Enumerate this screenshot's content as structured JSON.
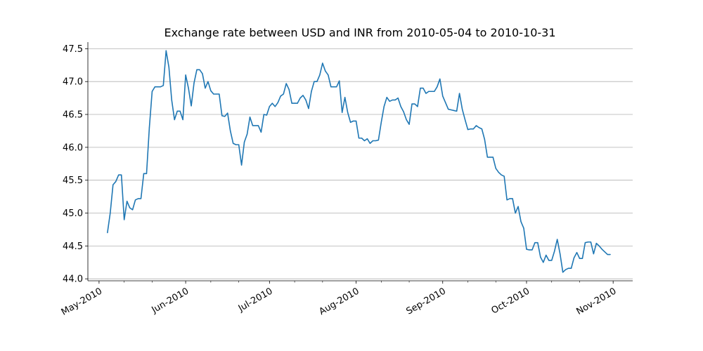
{
  "chart_data": {
    "type": "line",
    "title": "Exchange rate between USD and INR from 2010-05-04 to 2010-10-31",
    "xlabel": "",
    "ylabel": "",
    "x_start": "2010-05-04",
    "x_end": "2010-10-31",
    "xlim": [
      "2010-04-27",
      "2010-11-08"
    ],
    "ylim": [
      43.97,
      47.6
    ],
    "y_ticks": [
      44.0,
      44.5,
      45.0,
      45.5,
      46.0,
      46.5,
      47.0,
      47.5
    ],
    "y_tick_labels": [
      "44.0",
      "44.5",
      "45.0",
      "45.5",
      "46.0",
      "46.5",
      "47.0",
      "47.5"
    ],
    "x_major_ticks": [
      "2010-05-01",
      "2010-06-01",
      "2010-07-01",
      "2010-08-01",
      "2010-09-01",
      "2010-10-01",
      "2010-11-01"
    ],
    "x_tick_labels": [
      "May-2010",
      "Jun-2010",
      "Jul-2010",
      "Aug-2010",
      "Sep-2010",
      "Oct-2010",
      "Nov-2010"
    ],
    "x_minor_ticks": [
      "2010-05-10",
      "2010-05-20",
      "2010-06-10",
      "2010-06-20",
      "2010-07-10",
      "2010-07-20",
      "2010-08-10",
      "2010-08-20",
      "2010-09-10",
      "2010-09-20",
      "2010-10-10",
      "2010-10-20"
    ],
    "grid": "horizontal",
    "line_color": "#1f77b4",
    "series": [
      {
        "x": [
          "2010-05-04",
          "2010-05-05",
          "2010-05-06",
          "2010-05-07",
          "2010-05-08",
          "2010-05-09",
          "2010-05-10",
          "2010-05-11",
          "2010-05-12",
          "2010-05-13",
          "2010-05-14",
          "2010-05-15",
          "2010-05-16",
          "2010-05-17",
          "2010-05-18",
          "2010-05-19",
          "2010-05-20",
          "2010-05-21",
          "2010-05-22",
          "2010-05-23",
          "2010-05-24",
          "2010-05-25",
          "2010-05-26",
          "2010-05-27",
          "2010-05-28",
          "2010-05-29",
          "2010-05-30",
          "2010-05-31",
          "2010-06-01",
          "2010-06-02",
          "2010-06-03",
          "2010-06-04",
          "2010-06-05",
          "2010-06-06",
          "2010-06-07",
          "2010-06-08",
          "2010-06-09",
          "2010-06-10",
          "2010-06-11",
          "2010-06-12",
          "2010-06-13",
          "2010-06-14",
          "2010-06-15",
          "2010-06-16",
          "2010-06-17",
          "2010-06-18",
          "2010-06-19",
          "2010-06-20",
          "2010-06-21",
          "2010-06-22",
          "2010-06-23",
          "2010-06-24",
          "2010-06-25",
          "2010-06-26",
          "2010-06-27",
          "2010-06-28",
          "2010-06-29",
          "2010-06-30",
          "2010-07-01",
          "2010-07-02",
          "2010-07-03",
          "2010-07-04",
          "2010-07-05",
          "2010-07-06",
          "2010-07-07",
          "2010-07-08",
          "2010-07-09",
          "2010-07-10",
          "2010-07-11",
          "2010-07-12",
          "2010-07-13",
          "2010-07-14",
          "2010-07-15",
          "2010-07-16",
          "2010-07-17",
          "2010-07-18",
          "2010-07-19",
          "2010-07-20",
          "2010-07-21",
          "2010-07-22",
          "2010-07-23",
          "2010-07-24",
          "2010-07-25",
          "2010-07-26",
          "2010-07-27",
          "2010-07-28",
          "2010-07-29",
          "2010-07-30",
          "2010-07-31",
          "2010-08-01",
          "2010-08-02",
          "2010-08-03",
          "2010-08-04",
          "2010-08-05",
          "2010-08-06",
          "2010-08-07",
          "2010-08-08",
          "2010-08-09",
          "2010-08-10",
          "2010-08-11",
          "2010-08-12",
          "2010-08-13",
          "2010-08-14",
          "2010-08-15",
          "2010-08-16",
          "2010-08-17",
          "2010-08-18",
          "2010-08-19",
          "2010-08-20",
          "2010-08-21",
          "2010-08-22",
          "2010-08-23",
          "2010-08-24",
          "2010-08-25",
          "2010-08-26",
          "2010-08-27",
          "2010-08-28",
          "2010-08-29",
          "2010-08-30",
          "2010-08-31",
          "2010-09-01",
          "2010-09-02",
          "2010-09-03",
          "2010-09-04",
          "2010-09-05",
          "2010-09-06",
          "2010-09-07",
          "2010-09-08",
          "2010-09-09",
          "2010-09-10",
          "2010-09-11",
          "2010-09-12",
          "2010-09-13",
          "2010-09-14",
          "2010-09-15",
          "2010-09-16",
          "2010-09-17",
          "2010-09-18",
          "2010-09-19",
          "2010-09-20",
          "2010-09-21",
          "2010-09-22",
          "2010-09-23",
          "2010-09-24",
          "2010-09-25",
          "2010-09-26",
          "2010-09-27",
          "2010-09-28",
          "2010-09-29",
          "2010-09-30",
          "2010-10-01",
          "2010-10-02",
          "2010-10-03",
          "2010-10-04",
          "2010-10-05",
          "2010-10-06",
          "2010-10-07",
          "2010-10-08",
          "2010-10-09",
          "2010-10-10",
          "2010-10-11",
          "2010-10-12",
          "2010-10-13",
          "2010-10-14",
          "2010-10-15",
          "2010-10-16",
          "2010-10-17",
          "2010-10-18",
          "2010-10-19",
          "2010-10-20",
          "2010-10-21",
          "2010-10-22",
          "2010-10-23",
          "2010-10-24",
          "2010-10-25",
          "2010-10-26",
          "2010-10-27",
          "2010-10-28",
          "2010-10-29",
          "2010-10-30",
          "2010-10-31"
        ],
        "y": [
          44.7,
          45.0,
          45.43,
          45.48,
          45.58,
          45.58,
          44.9,
          45.18,
          45.08,
          45.05,
          45.2,
          45.22,
          45.22,
          45.6,
          45.6,
          46.3,
          46.85,
          46.92,
          46.92,
          46.92,
          46.94,
          47.47,
          47.22,
          46.72,
          46.42,
          46.55,
          46.55,
          46.42,
          47.1,
          46.9,
          46.63,
          46.98,
          47.18,
          47.18,
          47.12,
          46.9,
          47.0,
          46.86,
          46.81,
          46.81,
          46.81,
          46.48,
          46.47,
          46.52,
          46.25,
          46.06,
          46.04,
          46.04,
          45.73,
          46.08,
          46.2,
          46.46,
          46.33,
          46.33,
          46.33,
          46.23,
          46.5,
          46.49,
          46.62,
          46.67,
          46.62,
          46.68,
          46.78,
          46.81,
          46.97,
          46.88,
          46.67,
          46.67,
          46.67,
          46.75,
          46.79,
          46.72,
          46.59,
          46.85,
          47.0,
          47.0,
          47.1,
          47.28,
          47.16,
          47.1,
          46.92,
          46.92,
          46.92,
          47.01,
          46.53,
          46.76,
          46.53,
          46.38,
          46.4,
          46.4,
          46.14,
          46.14,
          46.1,
          46.13,
          46.06,
          46.1,
          46.1,
          46.11,
          46.38,
          46.62,
          46.76,
          46.7,
          46.72,
          46.72,
          46.75,
          46.62,
          46.54,
          46.42,
          46.35,
          46.66,
          46.66,
          46.62,
          46.9,
          46.9,
          46.82,
          46.85,
          46.85,
          46.85,
          46.92,
          47.04,
          46.78,
          46.68,
          46.58,
          46.57,
          46.56,
          46.55,
          46.82,
          46.58,
          46.42,
          46.27,
          46.28,
          46.28,
          46.33,
          46.3,
          46.28,
          46.12,
          45.85,
          45.85,
          45.85,
          45.68,
          45.62,
          45.58,
          45.56,
          45.2,
          45.22,
          45.22,
          45.0,
          45.1,
          44.87,
          44.77,
          44.45,
          44.44,
          44.44,
          44.55,
          44.55,
          44.33,
          44.25,
          44.36,
          44.28,
          44.28,
          44.42,
          44.6,
          44.38,
          44.1,
          44.14,
          44.16,
          44.16,
          44.32,
          44.4,
          44.31,
          44.31,
          44.55,
          44.56,
          44.56,
          44.38,
          44.54,
          44.5,
          44.45,
          44.41,
          44.37,
          44.37
        ]
      }
    ]
  }
}
